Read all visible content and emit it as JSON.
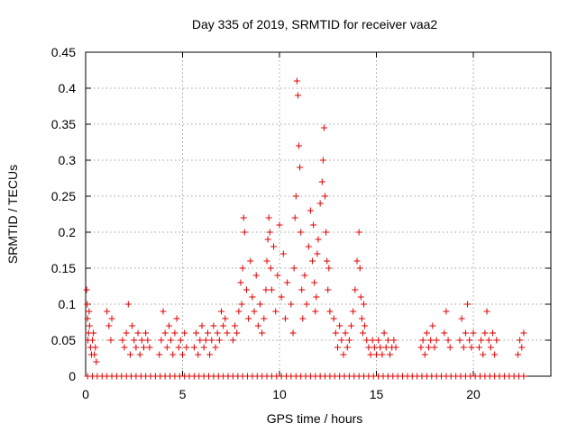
{
  "chart_data": {
    "type": "scatter",
    "title": "Day 335 of 2019, SRMTID for receiver vaa2",
    "xlabel": "GPS time / hours",
    "ylabel": "SRMTID / TECUs",
    "xlim": [
      0,
      24
    ],
    "ylim": [
      0,
      0.45
    ],
    "xticks": [
      0,
      5,
      10,
      15,
      20
    ],
    "xtick_labels": [
      "0",
      "5",
      "10",
      "15",
      "20"
    ],
    "yticks": [
      0,
      0.05,
      0.1,
      0.15,
      0.2,
      0.25,
      0.3,
      0.35,
      0.4,
      0.45
    ],
    "ytick_labels": [
      "0",
      "0.05",
      "0.1",
      "0.15",
      "0.2",
      "0.25",
      "0.3",
      "0.35",
      "0.4",
      "0.45"
    ],
    "grid": true,
    "marker": "plus",
    "color": "#e00000",
    "series": [
      {
        "name": "SRMTID",
        "x": [
          0.05,
          0.08,
          0.1,
          0.12,
          0.15,
          0.18,
          0.2,
          0.25,
          0.3,
          0.35,
          0.4,
          0.45,
          0.5,
          0.55,
          1.1,
          1.2,
          1.3,
          1.35,
          1.9,
          2.0,
          2.1,
          2.2,
          2.3,
          2.4,
          2.5,
          2.6,
          2.7,
          2.8,
          2.9,
          3.0,
          3.1,
          3.2,
          3.3,
          3.8,
          3.9,
          4.0,
          4.1,
          4.2,
          4.3,
          4.4,
          4.5,
          4.6,
          4.7,
          4.8,
          4.9,
          5.0,
          5.1,
          5.2,
          5.6,
          5.7,
          5.8,
          5.9,
          6.0,
          6.1,
          6.2,
          6.3,
          6.4,
          6.5,
          6.6,
          6.7,
          6.8,
          6.9,
          7.0,
          7.1,
          7.2,
          7.3,
          7.6,
          7.7,
          7.8,
          7.9,
          8.0,
          8.05,
          8.1,
          8.15,
          8.2,
          8.3,
          8.4,
          8.5,
          8.6,
          8.7,
          8.8,
          8.9,
          9.0,
          9.1,
          9.2,
          9.3,
          9.35,
          9.4,
          9.45,
          9.5,
          9.55,
          9.6,
          9.7,
          9.8,
          9.9,
          10.0,
          10.1,
          10.2,
          10.3,
          10.4,
          10.6,
          10.7,
          10.75,
          10.8,
          10.85,
          10.9,
          10.95,
          11.0,
          11.05,
          11.1,
          11.15,
          11.2,
          11.3,
          11.4,
          11.5,
          11.6,
          11.7,
          11.75,
          11.8,
          11.85,
          11.9,
          11.95,
          12.0,
          12.1,
          12.2,
          12.25,
          12.3,
          12.35,
          12.4,
          12.45,
          12.5,
          12.55,
          12.6,
          12.8,
          12.9,
          13.0,
          13.1,
          13.2,
          13.3,
          13.4,
          13.5,
          13.6,
          13.7,
          13.8,
          13.9,
          14.0,
          14.1,
          14.15,
          14.2,
          14.25,
          14.3,
          14.35,
          14.4,
          14.5,
          14.6,
          14.7,
          14.8,
          14.9,
          15.0,
          15.1,
          15.2,
          15.3,
          15.4,
          15.5,
          15.6,
          15.7,
          15.8,
          15.9,
          16.0,
          17.3,
          17.4,
          17.5,
          17.6,
          17.7,
          17.8,
          17.9,
          18.0,
          18.1,
          18.5,
          18.6,
          18.7,
          18.8,
          19.3,
          19.4,
          19.5,
          19.6,
          19.7,
          19.8,
          19.9,
          20.0,
          20.3,
          20.4,
          20.5,
          20.6,
          20.7,
          20.8,
          20.9,
          21.0,
          21.1,
          21.2,
          22.3,
          22.4,
          22.5,
          22.6
        ],
        "y": [
          0.12,
          0.1,
          0.08,
          0.05,
          0.06,
          0.09,
          0.07,
          0.04,
          0.03,
          0.05,
          0.06,
          0.03,
          0.04,
          0.02,
          0.09,
          0.07,
          0.05,
          0.08,
          0.05,
          0.04,
          0.06,
          0.1,
          0.03,
          0.07,
          0.05,
          0.04,
          0.06,
          0.03,
          0.05,
          0.04,
          0.06,
          0.05,
          0.04,
          0.03,
          0.05,
          0.09,
          0.06,
          0.04,
          0.07,
          0.05,
          0.03,
          0.06,
          0.08,
          0.04,
          0.05,
          0.03,
          0.06,
          0.04,
          0.04,
          0.06,
          0.03,
          0.05,
          0.07,
          0.04,
          0.05,
          0.06,
          0.03,
          0.05,
          0.07,
          0.04,
          0.06,
          0.05,
          0.09,
          0.07,
          0.08,
          0.06,
          0.05,
          0.07,
          0.06,
          0.09,
          0.13,
          0.1,
          0.15,
          0.22,
          0.2,
          0.12,
          0.08,
          0.16,
          0.11,
          0.09,
          0.14,
          0.07,
          0.1,
          0.06,
          0.08,
          0.12,
          0.16,
          0.19,
          0.22,
          0.2,
          0.15,
          0.12,
          0.18,
          0.09,
          0.14,
          0.21,
          0.11,
          0.17,
          0.08,
          0.13,
          0.1,
          0.06,
          0.15,
          0.22,
          0.25,
          0.41,
          0.39,
          0.32,
          0.29,
          0.2,
          0.12,
          0.08,
          0.14,
          0.1,
          0.18,
          0.23,
          0.16,
          0.21,
          0.13,
          0.09,
          0.11,
          0.17,
          0.19,
          0.24,
          0.27,
          0.3,
          0.345,
          0.25,
          0.2,
          0.16,
          0.12,
          0.15,
          0.09,
          0.08,
          0.06,
          0.04,
          0.07,
          0.05,
          0.03,
          0.06,
          0.04,
          0.05,
          0.07,
          0.09,
          0.12,
          0.16,
          0.2,
          0.15,
          0.11,
          0.08,
          0.06,
          0.1,
          0.07,
          0.05,
          0.04,
          0.03,
          0.05,
          0.04,
          0.03,
          0.05,
          0.04,
          0.03,
          0.06,
          0.04,
          0.05,
          0.03,
          0.04,
          0.05,
          0.04,
          0.04,
          0.05,
          0.03,
          0.06,
          0.04,
          0.05,
          0.07,
          0.04,
          0.05,
          0.06,
          0.09,
          0.05,
          0.04,
          0.05,
          0.08,
          0.04,
          0.06,
          0.1,
          0.05,
          0.04,
          0.06,
          0.04,
          0.05,
          0.03,
          0.06,
          0.09,
          0.05,
          0.04,
          0.06,
          0.03,
          0.05,
          0.03,
          0.05,
          0.04,
          0.06
        ]
      },
      {
        "name": "zero-baseline",
        "x_start": 0.1,
        "x_end": 22.7,
        "x_step": 0.25,
        "y": 0
      }
    ]
  }
}
